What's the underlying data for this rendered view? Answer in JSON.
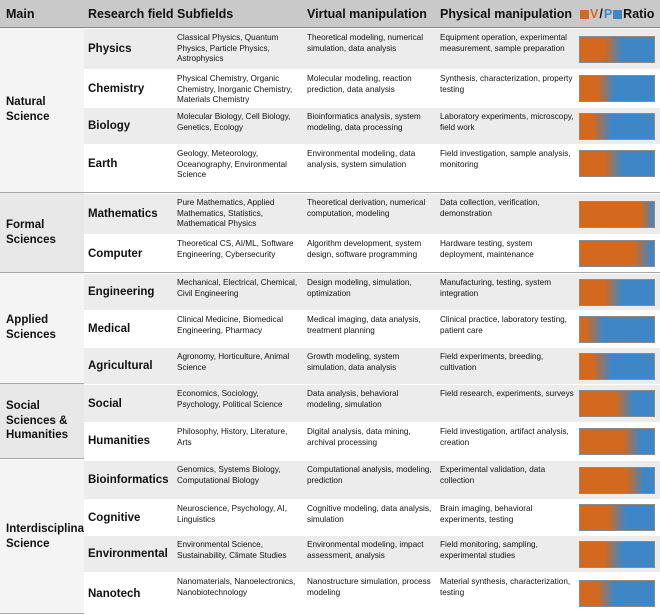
{
  "header": {
    "main": "Main",
    "field": "Research field",
    "subfields": "Subfields",
    "virtual": "Virtual manipulation",
    "physical": "Physical manipulation",
    "ratio_v": "V",
    "ratio_sep": "/",
    "ratio_p": "P",
    "ratio": "Ratio"
  },
  "colors": {
    "virtual": "#d2691e",
    "physical": "#3f86c7"
  },
  "groups": [
    {
      "label": "Natural Science",
      "rows": [
        {
          "field": "Physics",
          "subfields": "Classical Physics, Quantum Physics, Particle Physics, Astrophysics",
          "virtual": "Theoretical modeling, numerical simulation, data analysis",
          "physical": "Equipment operation, experimental measurement, sample preparation",
          "ratio_v": 0.45
        },
        {
          "field": "Chemistry",
          "subfields": "Physical Chemistry, Organic Chemistry, Inorganic Chemistry, Materials Chemistry",
          "virtual": "Molecular modeling, reaction prediction, data analysis",
          "physical": "Synthesis, characterization, property testing",
          "ratio_v": 0.35
        },
        {
          "field": "Biology",
          "subfields": "Molecular Biology, Cell Biology, Genetics, Ecology",
          "virtual": "Bioinformatics analysis, system modeling, data processing",
          "physical": "Laboratory experiments, microscopy, field work",
          "ratio_v": 0.3
        },
        {
          "field": "Earth",
          "subfields": "Geology, Meteorology, Oceanography, Environmental Science",
          "virtual": "Environmental modeling, data analysis, system simulation",
          "physical": "Field investigation, sample analysis, monitoring",
          "ratio_v": 0.45
        }
      ]
    },
    {
      "label": "Formal Sciences",
      "rows": [
        {
          "field": "Mathematics",
          "subfields": "Pure Mathematics, Applied Mathematics, Statistics, Mathematical Physics",
          "virtual": "Theoretical derivation, numerical computation, modeling",
          "physical": "Data collection, verification, demonstration",
          "ratio_v": 0.95
        },
        {
          "field": "Computer",
          "subfields": "Theoretical CS, AI/ML, Software Engineering, Cybersecurity",
          "virtual": "Algorithm development, system design, software programming",
          "physical": "Hardware testing, system deployment, maintenance",
          "ratio_v": 0.85
        }
      ]
    },
    {
      "label": "Applied Sciences",
      "rows": [
        {
          "field": "Engineering",
          "subfields": "Mechanical, Electrical, Chemical, Civil Engineering",
          "virtual": "Design modeling, simulation, optimization",
          "physical": "Manufacturing, testing, system integration",
          "ratio_v": 0.45
        },
        {
          "field": "Medical",
          "subfields": "Clinical Medicine, Biomedical Engineering, Pharmacy",
          "virtual": "Medical imaging, data analysis, treatment planning",
          "physical": "Clinical practice, laboratory testing, patient care",
          "ratio_v": 0.2
        },
        {
          "field": "Agricultural",
          "subfields": "Agronomy, Horticulture, Animal Science",
          "virtual": "Growth modeling, system simulation, data analysis",
          "physical": "Field experiments, breeding, cultivation",
          "ratio_v": 0.3
        }
      ]
    },
    {
      "label": "Social Sciences & Humanities",
      "rows": [
        {
          "field": "Social",
          "subfields": "Economics, Sociology, Psychology, Political Science",
          "virtual": "Data analysis, behavioral modeling, simulation",
          "physical": "Field research, experiments, surveys",
          "ratio_v": 0.6
        },
        {
          "field": "Humanities",
          "subfields": "Philosophy, History, Literature, Arts",
          "virtual": "Digital analysis, data mining, archival processing",
          "physical": "Field investigation, artifact analysis, creation",
          "ratio_v": 0.7
        }
      ]
    },
    {
      "label": "Interdisciplinary Science",
      "rows": [
        {
          "field": "Bioinformatics",
          "subfields": "Genomics, Systems Biology, Computational Biology",
          "virtual": "Computational analysis, modeling, prediction",
          "physical": "Experimental validation, data collection",
          "ratio_v": 0.75
        },
        {
          "field": "Cognitive",
          "subfields": "Neuroscience, Psychology, AI, Linguistics",
          "virtual": "Cognitive modeling, data analysis, simulation",
          "physical": "Brain imaging, behavioral experiments, testing",
          "ratio_v": 0.5
        },
        {
          "field": "Environmental",
          "subfields": "Environmental Science, Sustainability, Climate Studies",
          "virtual": "Environmental modeling, impact assessment, analysis",
          "physical": "Field monitoring, sampling, experimental studies",
          "ratio_v": 0.45
        },
        {
          "field": "Nanotech",
          "subfields": "Nanomaterials, Nanoelectronics, Nanobiotechnology",
          "virtual": "Nanostructure simulation, process modeling",
          "physical": "Material synthesis, characterization, testing",
          "ratio_v": 0.35
        }
      ]
    }
  ]
}
